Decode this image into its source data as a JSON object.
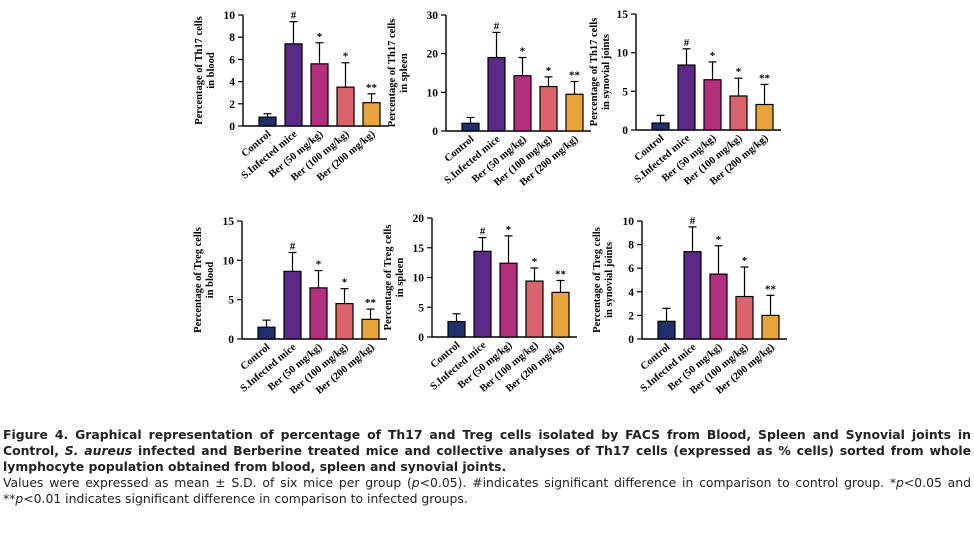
{
  "chart_data": [
    {
      "type": "bar",
      "categories": [
        "Control",
        "S.Infected mice",
        "Ber (50 mg/kg)",
        "Ber (100 mg/kg)",
        "Ber (200 mg/kg)"
      ],
      "values": [
        0.8,
        7.4,
        5.6,
        3.5,
        2.1
      ],
      "errors": [
        0.3,
        2.0,
        1.9,
        2.2,
        0.8
      ],
      "annotations": [
        "",
        "#",
        "*",
        "*",
        "**"
      ],
      "ylabel": "Percentage of Th17 cells in blood",
      "ylim": [
        0,
        10
      ],
      "yticks": [
        0,
        2,
        4,
        6,
        8,
        10
      ]
    },
    {
      "type": "bar",
      "categories": [
        "Control",
        "S.Infected mice",
        "Ber (50 mg/kg)",
        "Ber (100 mg/kg)",
        "Ber (200 mg/kg)"
      ],
      "values": [
        2.0,
        19.0,
        14.3,
        11.5,
        9.5
      ],
      "errors": [
        1.5,
        6.5,
        4.7,
        2.5,
        3.3
      ],
      "annotations": [
        "",
        "#",
        "*",
        "*",
        "**"
      ],
      "ylabel": "Percentage of Th17 cells in spleen",
      "ylim": [
        0,
        30
      ],
      "yticks": [
        0,
        10,
        20,
        30
      ]
    },
    {
      "type": "bar",
      "categories": [
        "Control",
        "S.Infected mice",
        "Ber (50 mg/kg)",
        "Ber (100 mg/kg)",
        "Ber (200 mg/kg)"
      ],
      "values": [
        0.9,
        8.4,
        6.5,
        4.4,
        3.3
      ],
      "errors": [
        1.0,
        2.1,
        2.3,
        2.3,
        2.6
      ],
      "annotations": [
        "",
        "#",
        "*",
        "*",
        "**"
      ],
      "ylabel": "Percentage of Th17 cells in synovial joints",
      "ylim": [
        0,
        15
      ],
      "yticks": [
        0,
        5,
        10,
        15
      ]
    },
    {
      "type": "bar",
      "categories": [
        "Control",
        "S.Infected mice",
        "Ber (50 mg/kg)",
        "Ber (100 mg/kg)",
        "Ber (200 mg/kg)"
      ],
      "values": [
        1.5,
        8.6,
        6.5,
        4.5,
        2.5
      ],
      "errors": [
        0.9,
        2.4,
        2.2,
        1.9,
        1.3
      ],
      "annotations": [
        "",
        "#",
        "*",
        "*",
        "**"
      ],
      "ylabel": "Percentage of Treg cells in blood",
      "ylim": [
        0,
        15
      ],
      "yticks": [
        0,
        5,
        10,
        15
      ]
    },
    {
      "type": "bar",
      "categories": [
        "Control",
        "S.Infected mice",
        "Ber (50 mg/kg)",
        "Ber (100 mg/kg)",
        "Ber (200 mg/kg)"
      ],
      "values": [
        2.6,
        14.4,
        12.4,
        9.4,
        7.5
      ],
      "errors": [
        1.3,
        2.3,
        4.6,
        2.2,
        2.0
      ],
      "annotations": [
        "",
        "#",
        "*",
        "*",
        "**"
      ],
      "ylabel": "Percentage of Treg cells in spleen",
      "ylim": [
        0,
        20
      ],
      "yticks": [
        0,
        5,
        10,
        15,
        20
      ]
    },
    {
      "type": "bar",
      "categories": [
        "Control",
        "S.Infected mice",
        "Ber (50 mg/kg)",
        "Ber (100 mg/kg)",
        "Ber (200 mg/kg)"
      ],
      "values": [
        1.5,
        7.4,
        5.5,
        3.6,
        2.0
      ],
      "errors": [
        1.1,
        2.1,
        2.4,
        2.5,
        1.7
      ],
      "annotations": [
        "",
        "#",
        "*",
        "*",
        "**"
      ],
      "ylabel": "Percentage of Treg cells in synovial joints",
      "ylim": [
        0,
        10
      ],
      "yticks": [
        0,
        2,
        4,
        6,
        8,
        10
      ]
    }
  ],
  "colors": [
    "#1f2f6b",
    "#5b2a86",
    "#b3307f",
    "#d9646d",
    "#e8a43c"
  ],
  "caption": {
    "title_part1": "Figure 4. Graphical representation of percentage of Th17 and Treg cells isolated by FACS from Blood, Spleen and Synovial joints in Control, ",
    "title_italic": "S. aureus",
    "title_part2": " infected and Berberine treated mice and collective analyses of Th17 cells (expressed as % cells) sorted from whole lymphocyte population obtained from blood, spleen and synovial joints.",
    "note_part1": "Values were expressed as mean ± S.D. of six mice per group (",
    "note_p1": "p",
    "note_part2": "<0.05). #indicates significant difference in comparison to control group. *",
    "note_p2": "p",
    "note_part3": "<0.05 and **",
    "note_p3": "p",
    "note_part4": "<0.01 indicates significant difference in comparison to infected groups."
  }
}
